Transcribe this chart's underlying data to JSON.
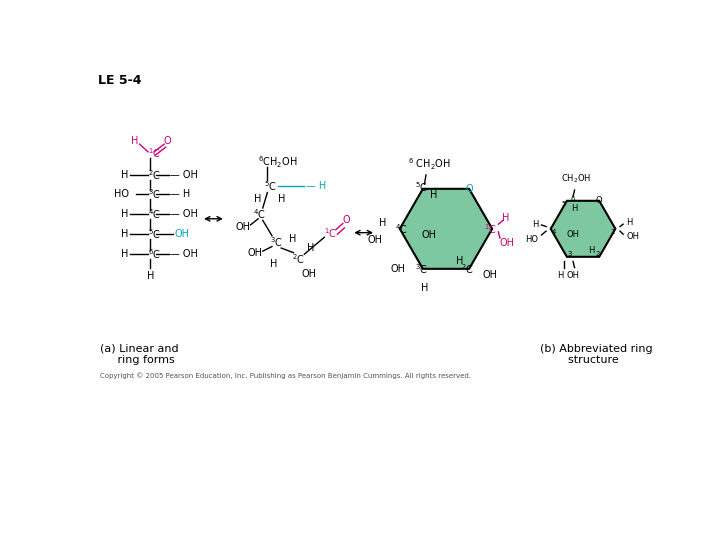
{
  "title": "LE 5-4",
  "label_a": "(a) Linear and\n     ring forms",
  "label_b": "(b) Abbreviated ring\n        structure",
  "copyright": "Copyright © 2005 Pearson Education, Inc. Publishing as Pearson Benjamin Cummings. All rights reserved.",
  "bg_color": "#ffffff",
  "black": "#000000",
  "magenta": "#cc0077",
  "cyan": "#00aabb",
  "green_fill": "#7dc8a0",
  "fs_main": 7,
  "fs_small": 6,
  "fs_title": 9,
  "fs_label": 8,
  "fs_copy": 5
}
